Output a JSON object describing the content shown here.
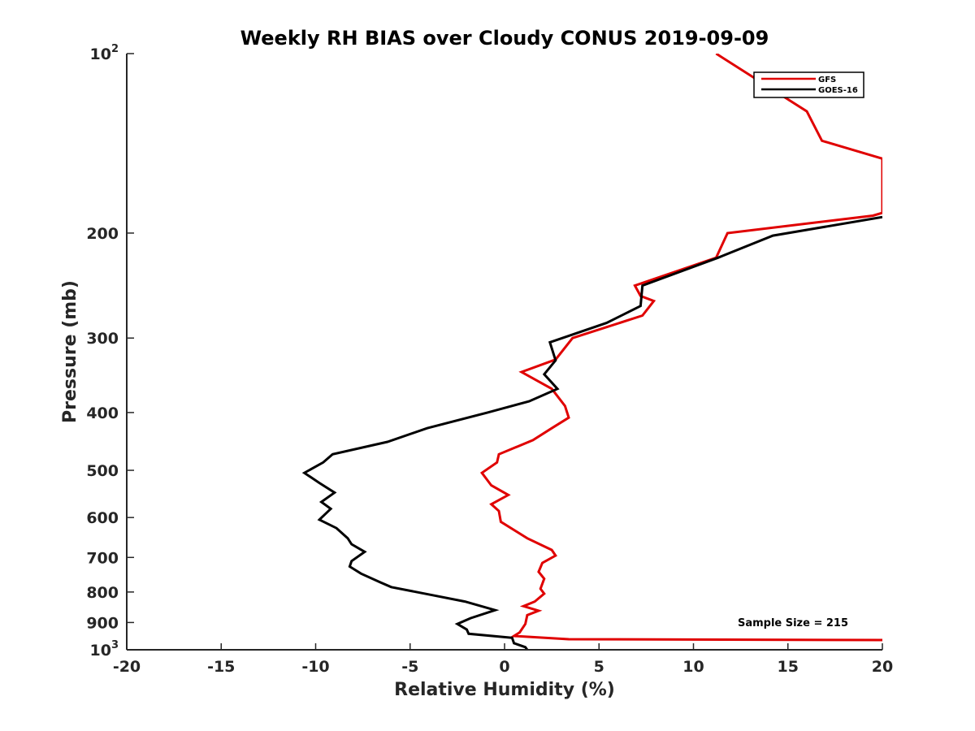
{
  "chart_data": {
    "type": "line",
    "title": "Weekly RH BIAS over Cloudy CONUS 2019-09-09",
    "xlabel": "Relative Humidity (%)",
    "ylabel": "Pressure (mb)",
    "xlim": [
      -20,
      20
    ],
    "ylim": [
      100,
      1000
    ],
    "y_scale": "log",
    "y_reversed": true,
    "grid": false,
    "legend_position": "top-right",
    "annotation": "Sample Size = 215",
    "x_ticks": [
      {
        "value": -20,
        "label": "-20"
      },
      {
        "value": -15,
        "label": "-15"
      },
      {
        "value": -10,
        "label": "-10"
      },
      {
        "value": -5,
        "label": "-5"
      },
      {
        "value": 0,
        "label": "0"
      },
      {
        "value": 5,
        "label": "5"
      },
      {
        "value": 10,
        "label": "10"
      },
      {
        "value": 15,
        "label": "15"
      },
      {
        "value": 20,
        "label": "20"
      }
    ],
    "y_ticks": [
      {
        "value": 100,
        "base": "10",
        "exp": "2"
      },
      {
        "value": 200,
        "base": "200",
        "exp": ""
      },
      {
        "value": 300,
        "base": "300",
        "exp": ""
      },
      {
        "value": 400,
        "base": "400",
        "exp": ""
      },
      {
        "value": 500,
        "base": "500",
        "exp": ""
      },
      {
        "value": 600,
        "base": "600",
        "exp": ""
      },
      {
        "value": 700,
        "base": "700",
        "exp": ""
      },
      {
        "value": 800,
        "base": "800",
        "exp": ""
      },
      {
        "value": 900,
        "base": "900",
        "exp": ""
      },
      {
        "value": 1000,
        "base": "10",
        "exp": "3"
      }
    ],
    "series": [
      {
        "name": "GFS",
        "color": "#e00000",
        "points": [
          [
            11.2,
            100
          ],
          [
            16.0,
            125
          ],
          [
            16.8,
            140
          ],
          [
            20.0,
            150
          ],
          [
            20.0,
            185
          ],
          [
            19.5,
            187
          ],
          [
            11.8,
            200
          ],
          [
            11.2,
            220
          ],
          [
            6.9,
            245
          ],
          [
            7.2,
            255
          ],
          [
            7.9,
            260
          ],
          [
            7.3,
            275
          ],
          [
            3.6,
            300
          ],
          [
            2.7,
            326
          ],
          [
            0.9,
            342
          ],
          [
            2.5,
            365
          ],
          [
            3.2,
            390
          ],
          [
            3.4,
            408
          ],
          [
            2.5,
            425
          ],
          [
            1.5,
            445
          ],
          [
            -0.3,
            470
          ],
          [
            -0.4,
            485
          ],
          [
            -1.2,
            505
          ],
          [
            -0.7,
            530
          ],
          [
            0.2,
            550
          ],
          [
            -0.7,
            570
          ],
          [
            -0.3,
            585
          ],
          [
            -0.2,
            610
          ],
          [
            1.2,
            650
          ],
          [
            2.5,
            680
          ],
          [
            2.7,
            695
          ],
          [
            2.0,
            715
          ],
          [
            1.8,
            740
          ],
          [
            2.1,
            760
          ],
          [
            1.9,
            790
          ],
          [
            2.1,
            805
          ],
          [
            1.6,
            830
          ],
          [
            1.0,
            845
          ],
          [
            1.8,
            860
          ],
          [
            1.2,
            875
          ],
          [
            1.1,
            905
          ],
          [
            0.8,
            935
          ],
          [
            0.5,
            948
          ],
          [
            3.4,
            960
          ],
          [
            20.0,
            963
          ]
        ]
      },
      {
        "name": "GOES-16",
        "color": "#000000",
        "points": [
          [
            20.0,
            188
          ],
          [
            14.2,
            202
          ],
          [
            11.3,
            220
          ],
          [
            7.3,
            245
          ],
          [
            7.2,
            265
          ],
          [
            5.4,
            283
          ],
          [
            2.4,
            305
          ],
          [
            2.7,
            327
          ],
          [
            2.1,
            345
          ],
          [
            2.8,
            365
          ],
          [
            1.3,
            383
          ],
          [
            -0.9,
            400
          ],
          [
            -4.1,
            425
          ],
          [
            -6.2,
            448
          ],
          [
            -9.1,
            470
          ],
          [
            -9.6,
            485
          ],
          [
            -10.6,
            505
          ],
          [
            -9.8,
            525
          ],
          [
            -9.0,
            545
          ],
          [
            -9.7,
            565
          ],
          [
            -9.2,
            580
          ],
          [
            -9.8,
            605
          ],
          [
            -8.9,
            625
          ],
          [
            -8.3,
            650
          ],
          [
            -8.1,
            665
          ],
          [
            -7.4,
            685
          ],
          [
            -8.1,
            710
          ],
          [
            -8.2,
            725
          ],
          [
            -7.6,
            745
          ],
          [
            -6.6,
            770
          ],
          [
            -6.0,
            785
          ],
          [
            -3.8,
            810
          ],
          [
            -2.1,
            830
          ],
          [
            -0.5,
            858
          ],
          [
            -1.8,
            885
          ],
          [
            -2.5,
            905
          ],
          [
            -2.0,
            925
          ],
          [
            -1.9,
            940
          ],
          [
            0.4,
            955
          ],
          [
            0.5,
            975
          ],
          [
            1.1,
            990
          ],
          [
            1.2,
            1000
          ]
        ]
      }
    ]
  }
}
